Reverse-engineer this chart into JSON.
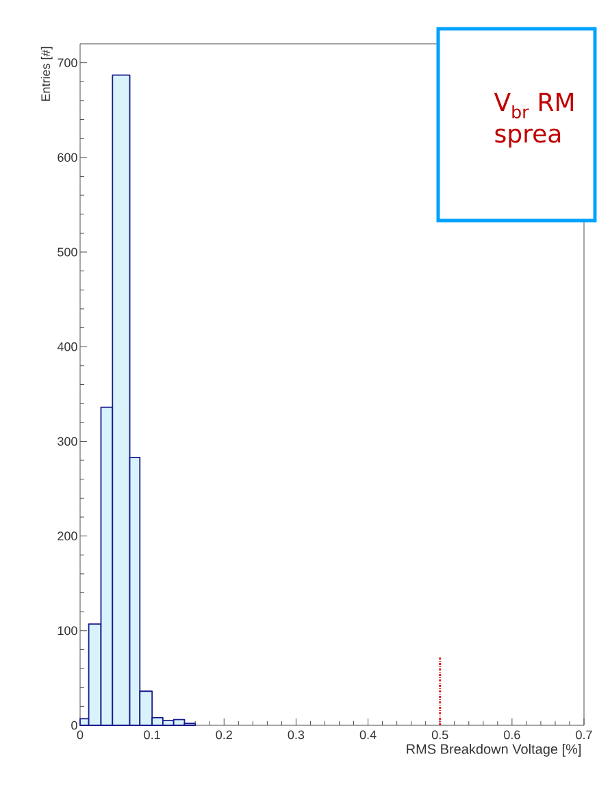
{
  "chart_data": {
    "type": "histogram",
    "xlabel": "RMS Breakdown Voltage [%]",
    "ylabel": "Entries [#]",
    "bins": [
      0,
      0.012,
      0.029,
      0.045,
      0.069,
      0.083,
      0.1,
      0.115,
      0.13,
      0.145,
      0.16
    ],
    "values": [
      7,
      107,
      336,
      687,
      283,
      36,
      8,
      5,
      6,
      2
    ],
    "color": "#1a1a8c",
    "xlim": [
      0,
      0.7
    ],
    "ylim": [
      0,
      720
    ],
    "xticks": [
      {
        "value": 0,
        "label": "0"
      },
      0.1,
      0.2,
      0.3,
      0.4,
      0.5,
      0.6,
      0.7
    ],
    "yticks": [
      0,
      100,
      200,
      300,
      400,
      500,
      600,
      700
    ],
    "grid": false,
    "ref_lines": [
      {
        "axis": "x",
        "value": 0.5,
        "color": "#e02020",
        "line_style": "dotted"
      }
    ],
    "annotations": [
      "V$_{br}$ RM",
      "sprea"
    ]
  }
}
